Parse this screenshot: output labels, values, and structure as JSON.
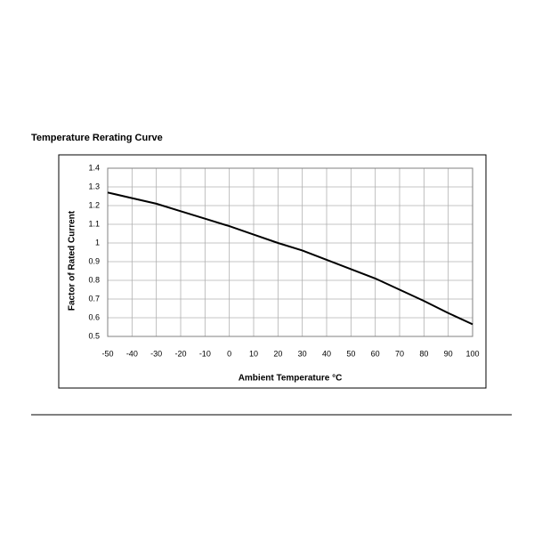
{
  "chart_data": {
    "type": "line",
    "title": "Temperature Rerating Curve",
    "x_label": "Ambient Temperature °C",
    "y_label": "Factor of Rated Current",
    "x": [
      -50,
      -40,
      -30,
      -20,
      -10,
      0,
      10,
      20,
      30,
      40,
      50,
      60,
      70,
      80,
      90,
      100
    ],
    "series": [
      {
        "color": "#000000",
        "values": [
          1.27,
          1.24,
          1.21,
          1.17,
          1.13,
          1.09,
          1.045,
          1.0,
          0.96,
          0.91,
          0.86,
          0.81,
          0.75,
          0.69,
          0.625,
          0.565
        ]
      }
    ],
    "xlim": [
      -50,
      100
    ],
    "xticks": [
      -50,
      -40,
      -30,
      -20,
      -10,
      0,
      10,
      20,
      30,
      40,
      50,
      60,
      70,
      80,
      90,
      100
    ],
    "ylim": [
      0.5,
      1.4
    ],
    "yticks": [
      0.5,
      0.6,
      0.7,
      0.8,
      0.9,
      1,
      1.1,
      1.2,
      1.3,
      1.4
    ],
    "grid": true
  }
}
